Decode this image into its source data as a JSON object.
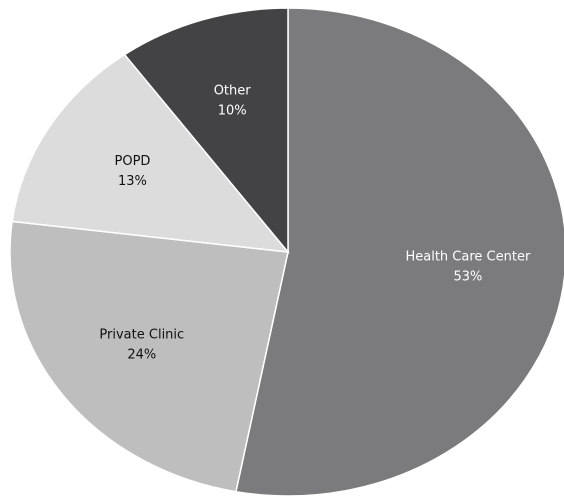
{
  "chart_data": {
    "type": "pie",
    "categories": [
      "Health Care Center",
      "Private Clinic",
      "POPD",
      "Other"
    ],
    "values": [
      53,
      24,
      13,
      10
    ],
    "value_labels": [
      "53%",
      "24%",
      "13%",
      "10%"
    ],
    "colors": [
      "#7b7b7e",
      "#bebebf",
      "#dcdcdd",
      "#434345"
    ],
    "start_angle": 0,
    "direction": "clockwise"
  }
}
